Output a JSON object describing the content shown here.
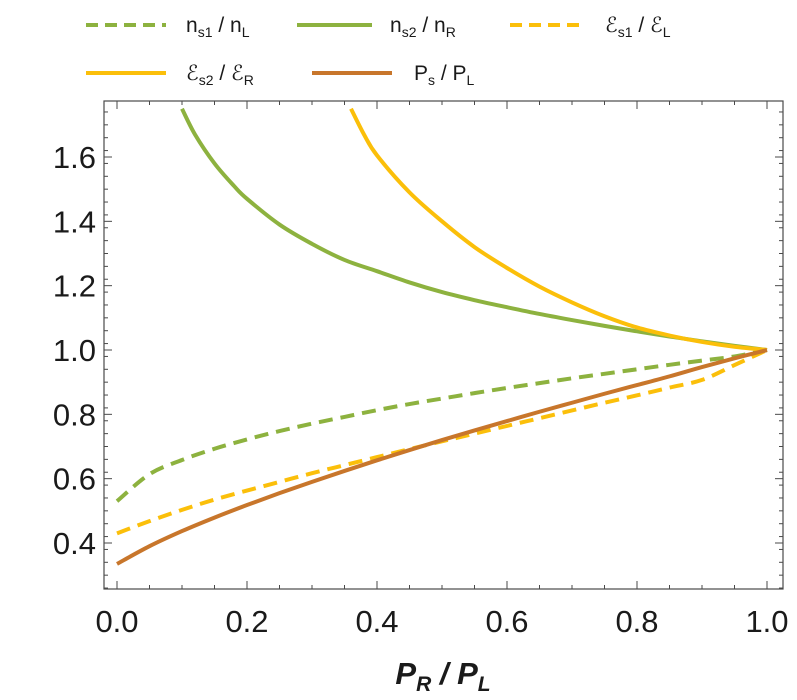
{
  "chart_data": {
    "type": "line",
    "xlabel": {
      "main": "P",
      "sub": "R",
      "sep": " / ",
      "main2": "P",
      "sub2": "L"
    },
    "ylabel": "",
    "xlim": [
      0,
      1
    ],
    "ylim": [
      0.25,
      1.75
    ],
    "x_ticks": [
      0.0,
      0.2,
      0.4,
      0.6,
      0.8,
      1.0
    ],
    "x_tick_labels": [
      "0.0",
      "0.2",
      "0.4",
      "0.6",
      "0.8",
      "1.0"
    ],
    "y_ticks": [
      0.4,
      0.6,
      0.8,
      1.0,
      1.2,
      1.4,
      1.6
    ],
    "y_tick_labels": [
      "0.4",
      "0.6",
      "0.8",
      "1.0",
      "1.2",
      "1.4",
      "1.6"
    ],
    "grid": false,
    "legend_position": "top",
    "series": [
      {
        "name": "n_s1 / n_L",
        "legend": {
          "a": "n",
          "a_sub": "s1",
          "sep": " / ",
          "b": "n",
          "b_sub": "L"
        },
        "color": "#8db23f",
        "dashed": true,
        "x": [
          0.0,
          0.05,
          0.1,
          0.15,
          0.2,
          0.25,
          0.3,
          0.35,
          0.4,
          0.45,
          0.5,
          0.55,
          0.6,
          0.65,
          0.7,
          0.75,
          0.8,
          0.85,
          0.9,
          0.95,
          1.0
        ],
        "y": [
          0.53,
          0.614,
          0.658,
          0.693,
          0.722,
          0.748,
          0.771,
          0.792,
          0.813,
          0.832,
          0.849,
          0.866,
          0.882,
          0.897,
          0.912,
          0.926,
          0.94,
          0.954,
          0.967,
          0.98,
          1.0
        ]
      },
      {
        "name": "n_s2 / n_R",
        "legend": {
          "a": "n",
          "a_sub": "s2",
          "sep": " / ",
          "b": "n",
          "b_sub": "R"
        },
        "color": "#8db23f",
        "dashed": false,
        "x": [
          0.1,
          0.12,
          0.15,
          0.18,
          0.2,
          0.25,
          0.3,
          0.35,
          0.4,
          0.45,
          0.5,
          0.55,
          0.6,
          0.65,
          0.7,
          0.75,
          0.8,
          0.85,
          0.9,
          0.95,
          1.0
        ],
        "y": [
          1.75,
          1.67,
          1.58,
          1.51,
          1.47,
          1.39,
          1.33,
          1.28,
          1.245,
          1.21,
          1.18,
          1.155,
          1.133,
          1.112,
          1.093,
          1.075,
          1.058,
          1.042,
          1.027,
          1.013,
          1.0
        ]
      },
      {
        "name": "E_s1 / E_L",
        "legend": {
          "a": "ℰ",
          "a_sub": "s1",
          "sep": " / ",
          "b": "ℰ",
          "b_sub": "L"
        },
        "color": "#fbbf0a",
        "dashed": true,
        "x": [
          0.0,
          0.05,
          0.1,
          0.15,
          0.2,
          0.25,
          0.3,
          0.35,
          0.4,
          0.45,
          0.5,
          0.55,
          0.6,
          0.65,
          0.7,
          0.75,
          0.8,
          0.85,
          0.9,
          0.95,
          1.0
        ],
        "y": [
          0.43,
          0.468,
          0.503,
          0.535,
          0.563,
          0.59,
          0.617,
          0.642,
          0.667,
          0.692,
          0.716,
          0.74,
          0.764,
          0.788,
          0.812,
          0.836,
          0.859,
          0.883,
          0.907,
          0.953,
          1.0
        ]
      },
      {
        "name": "E_s2 / E_R",
        "legend": {
          "a": "ℰ",
          "a_sub": "s2",
          "sep": " / ",
          "b": "ℰ",
          "b_sub": "R"
        },
        "color": "#fbbf0a",
        "dashed": false,
        "x": [
          0.36,
          0.38,
          0.4,
          0.45,
          0.5,
          0.55,
          0.6,
          0.65,
          0.7,
          0.75,
          0.8,
          0.85,
          0.9,
          0.95,
          1.0
        ],
        "y": [
          1.75,
          1.67,
          1.605,
          1.49,
          1.4,
          1.32,
          1.255,
          1.197,
          1.148,
          1.105,
          1.07,
          1.045,
          1.025,
          1.01,
          1.0
        ]
      },
      {
        "name": "P_s / P_L",
        "legend": {
          "a": "P",
          "a_sub": "s",
          "sep": " / ",
          "b": "P",
          "b_sub": "L"
        },
        "color": "#c8762b",
        "dashed": false,
        "x": [
          0.0,
          0.05,
          0.1,
          0.15,
          0.2,
          0.25,
          0.3,
          0.35,
          0.4,
          0.45,
          0.5,
          0.55,
          0.6,
          0.65,
          0.7,
          0.75,
          0.8,
          0.85,
          0.9,
          0.95,
          1.0
        ],
        "y": [
          0.335,
          0.39,
          0.437,
          0.479,
          0.518,
          0.555,
          0.59,
          0.624,
          0.657,
          0.689,
          0.72,
          0.75,
          0.779,
          0.808,
          0.836,
          0.864,
          0.891,
          0.918,
          0.947,
          0.974,
          1.0
        ]
      }
    ]
  }
}
